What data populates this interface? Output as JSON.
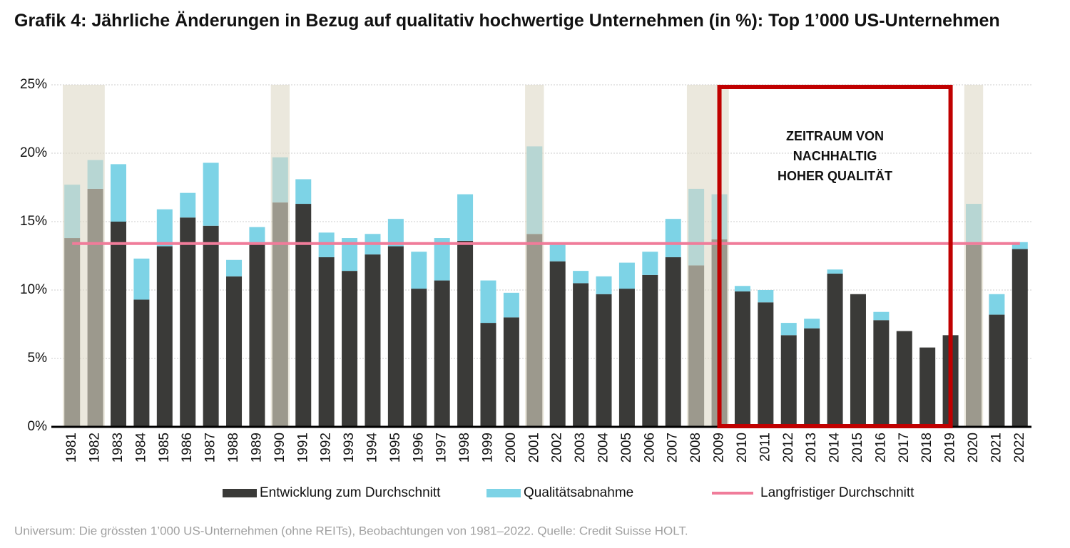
{
  "chart_data": {
    "type": "stacked_bar",
    "title": "Grafik 4: Jährliche Änderungen in Bezug auf qualitativ hochwertige Unternehmen (in %): Top 1’000 US-Unternehmen",
    "categories": [
      "1981",
      "1982",
      "1983",
      "1984",
      "1985",
      "1986",
      "1987",
      "1988",
      "1989",
      "1990",
      "1991",
      "1992",
      "1993",
      "1994",
      "1995",
      "1996",
      "1997",
      "1998",
      "1999",
      "2000",
      "2001",
      "2002",
      "2003",
      "2004",
      "2005",
      "2006",
      "2007",
      "2008",
      "2009",
      "2010",
      "2011",
      "2012",
      "2013",
      "2014",
      "2015",
      "2016",
      "2017",
      "2018",
      "2019",
      "2020",
      "2021",
      "2022"
    ],
    "series": [
      {
        "name": "Entwicklung zum Durchschnitt",
        "color": "#3a3a38",
        "values": [
          13.8,
          17.4,
          15.0,
          9.3,
          13.2,
          15.3,
          14.7,
          11.0,
          13.4,
          16.4,
          16.3,
          12.4,
          11.4,
          12.6,
          13.2,
          10.1,
          10.7,
          13.6,
          7.6,
          8.0,
          14.1,
          12.1,
          10.5,
          9.7,
          10.1,
          11.1,
          12.4,
          11.8,
          13.7,
          9.9,
          9.1,
          6.7,
          7.2,
          11.2,
          9.7,
          7.8,
          7.0,
          5.8,
          6.7,
          13.3,
          8.2,
          13.0
        ]
      },
      {
        "name": "Qualitätsabnahme",
        "color": "#7dd3e6",
        "values": [
          3.9,
          2.1,
          4.2,
          3.0,
          2.7,
          1.8,
          4.6,
          1.2,
          1.2,
          3.3,
          1.8,
          1.8,
          2.4,
          1.5,
          2.0,
          2.7,
          3.1,
          3.4,
          3.1,
          1.8,
          6.4,
          1.2,
          0.9,
          1.3,
          1.9,
          1.7,
          2.8,
          5.6,
          3.3,
          0.4,
          0.9,
          0.9,
          0.7,
          0.3,
          0,
          0.6,
          0,
          0,
          0,
          3.0,
          1.5,
          0.5
        ]
      }
    ],
    "reference_line": {
      "name": "Langfristiger Durchschnitt",
      "value": 13.4,
      "color": "#f07c9a"
    },
    "shaded_spans": [
      [
        0,
        1
      ],
      [
        9,
        9
      ],
      [
        20,
        20
      ],
      [
        27,
        28
      ],
      [
        39,
        39
      ]
    ],
    "annotation": {
      "lines": [
        "ZEITRAUM VON",
        "NACHHALTIG",
        "HOHER QUALITÄT"
      ],
      "span": [
        28,
        38
      ],
      "color": "#c00000"
    },
    "ylim": [
      0,
      25
    ],
    "yticks": [
      {
        "value": 0,
        "label": "0%"
      },
      {
        "value": 5,
        "label": "5%"
      },
      {
        "value": 10,
        "label": "10%"
      },
      {
        "value": 15,
        "label": "15%"
      },
      {
        "value": 20,
        "label": "20%"
      },
      {
        "value": 25,
        "label": "25%"
      }
    ],
    "grid": true,
    "legend": "bottom",
    "footnote": "Universum: Die grössten 1’000 US-Unternehmen (ohne REITs), Beobachtungen von 1981–2022. Quelle: Credit Suisse HOLT."
  }
}
